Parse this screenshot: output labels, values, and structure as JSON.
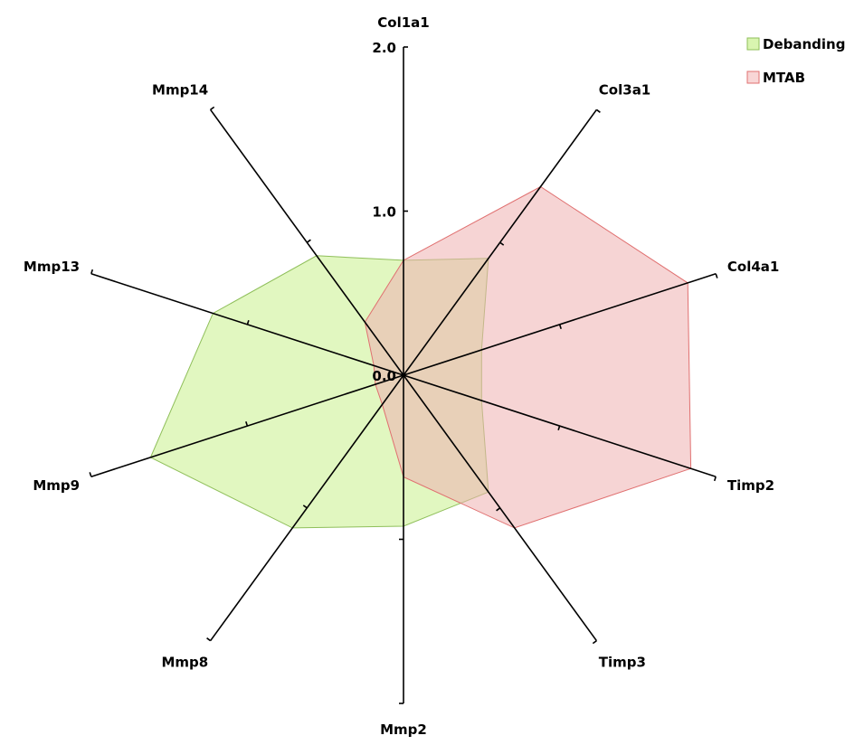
{
  "chart_data": {
    "type": "radar",
    "categories": [
      "Col1a1",
      "Col3a1",
      "Col4a1",
      "Timp2",
      "Timp3",
      "Mmp2",
      "Mmp8",
      "Mmp9",
      "Mmp13",
      "Mmp14"
    ],
    "series": [
      {
        "name": "Debanding",
        "values": [
          0.7,
          0.88,
          0.5,
          0.5,
          0.88,
          0.92,
          1.15,
          1.62,
          1.22,
          0.9
        ],
        "fill": "#c8f08c",
        "fill_opacity": 0.55,
        "stroke": "#8fbf5a"
      },
      {
        "name": "MTAB",
        "values": [
          0.7,
          1.42,
          1.82,
          1.84,
          1.15,
          0.62,
          0.22,
          0.18,
          0.19,
          0.4
        ],
        "fill": "#eeb0b0",
        "fill_opacity": 0.55,
        "stroke": "#e07070"
      }
    ],
    "rlim": [
      0,
      2
    ],
    "tick_labels": [
      "0.0",
      "1.0",
      "2.0"
    ],
    "legend_position": "top-right"
  }
}
